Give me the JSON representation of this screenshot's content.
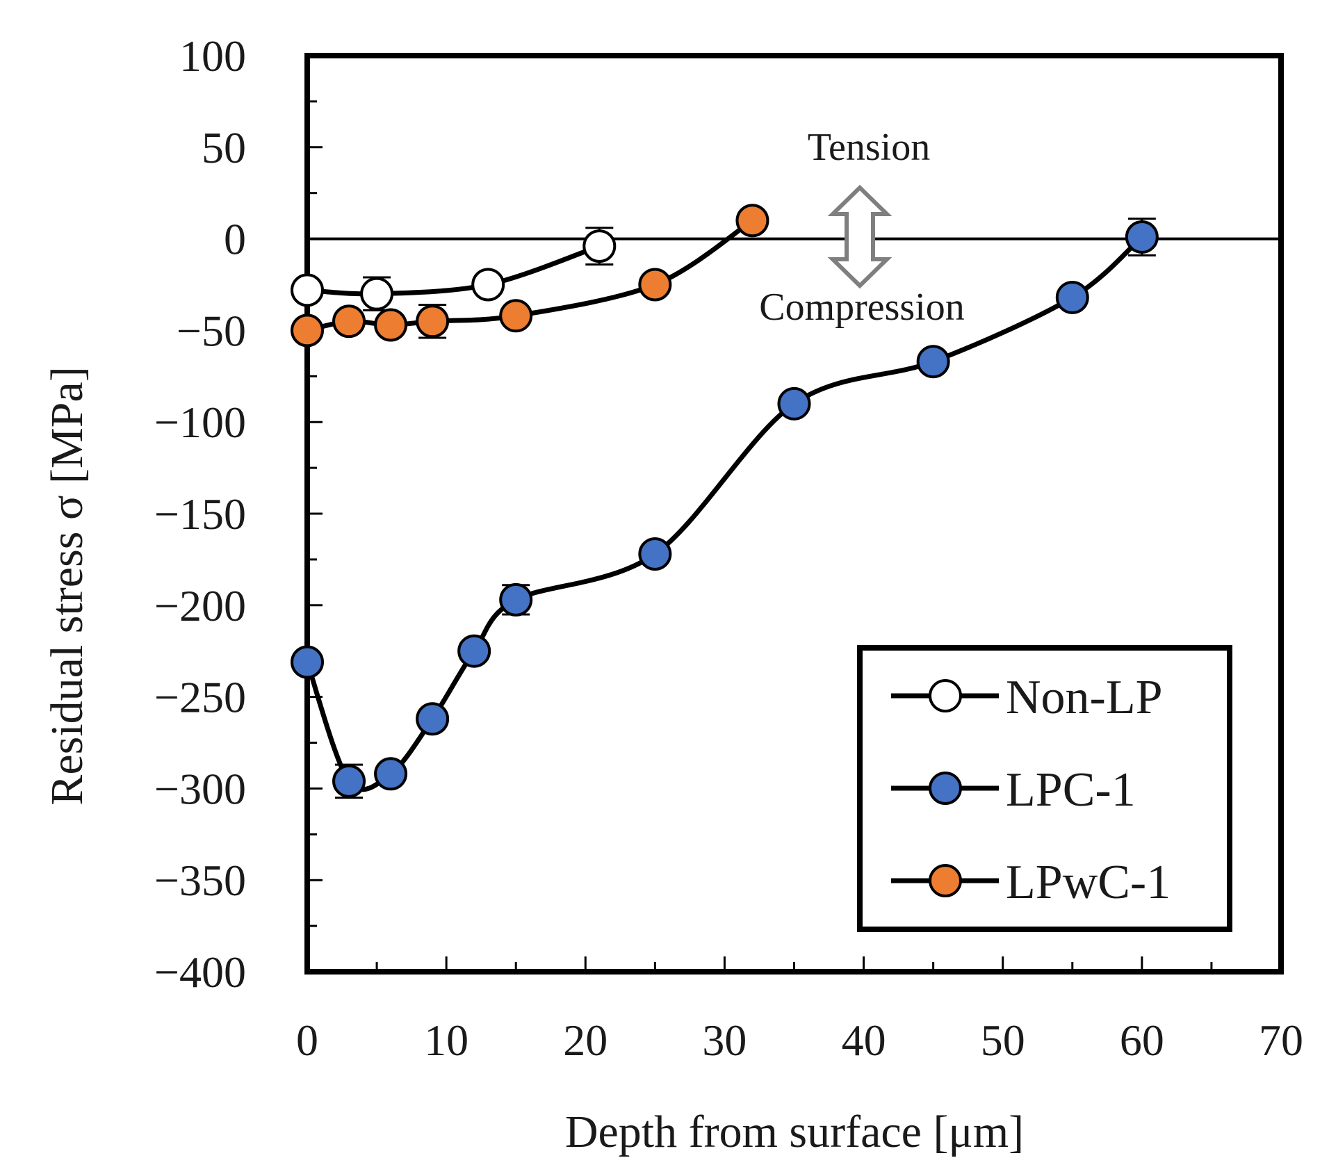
{
  "chart_data": {
    "type": "line",
    "title": "",
    "xlabel": "Depth from surface [μm]",
    "ylabel": "Residual stress σ [MPa]",
    "xlim": [
      0,
      70
    ],
    "ylim": [
      -400,
      100
    ],
    "x_ticks": [
      0,
      10,
      20,
      30,
      40,
      50,
      60,
      70
    ],
    "y_ticks": [
      100,
      50,
      0,
      -50,
      -100,
      -150,
      -200,
      -250,
      -300,
      -350,
      -400
    ],
    "x_tick_labels": [
      "0",
      "10",
      "20",
      "30",
      "40",
      "50",
      "60",
      "70"
    ],
    "y_tick_labels": [
      "100",
      "50",
      "0",
      "−50",
      "−100",
      "−150",
      "−200",
      "−250",
      "−300",
      "−350",
      "−400"
    ],
    "grid": false,
    "legend_position": "bottom-right",
    "annotations": {
      "tension": "Tension",
      "compression": "Compression"
    },
    "series": [
      {
        "name": "Non-LP",
        "marker_color": "#ffffff",
        "line_color": "#000000",
        "x": [
          0,
          5,
          13,
          21
        ],
        "y": [
          -28,
          -30,
          -25,
          -4
        ],
        "errors": [
          0,
          9,
          0,
          10
        ]
      },
      {
        "name": "LPC-1",
        "marker_color": "#4472c4",
        "line_color": "#000000",
        "x": [
          0,
          3,
          6,
          9,
          12,
          15,
          25,
          35,
          45,
          55,
          60
        ],
        "y": [
          -231,
          -296,
          -292,
          -262,
          -225,
          -197,
          -172,
          -90,
          -67,
          -32,
          1
        ],
        "errors": [
          0,
          9,
          0,
          0,
          0,
          8,
          0,
          0,
          0,
          0,
          10
        ]
      },
      {
        "name": "LPwC-1",
        "marker_color": "#ed7d31",
        "line_color": "#000000",
        "x": [
          0,
          3,
          6,
          9,
          15,
          25,
          32
        ],
        "y": [
          -50,
          -45,
          -47,
          -45,
          -42,
          -25,
          10
        ],
        "errors": [
          0,
          0,
          0,
          9,
          0,
          0,
          0
        ]
      }
    ]
  }
}
